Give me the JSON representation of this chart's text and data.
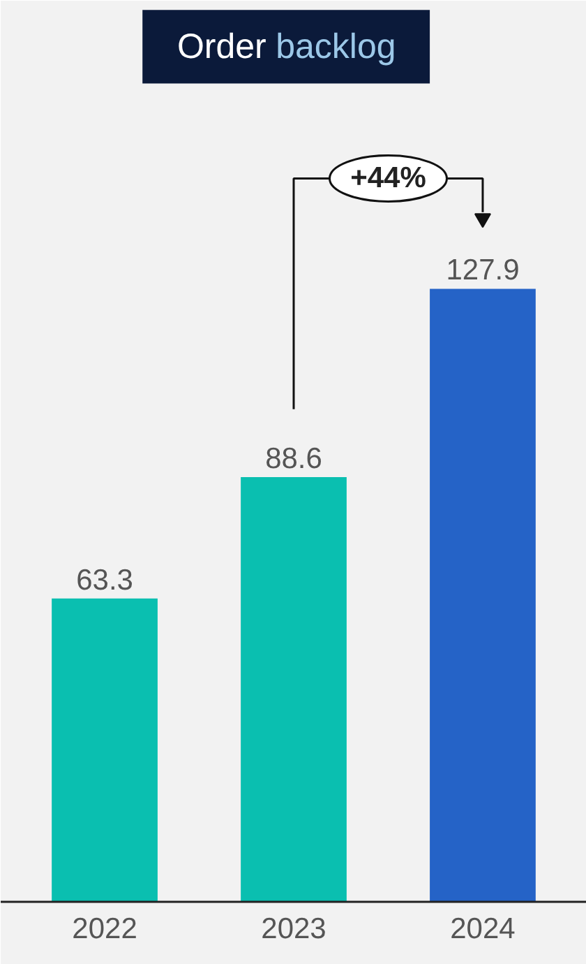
{
  "chart_data": {
    "type": "bar",
    "title": "Order backlog",
    "categories": [
      "2022",
      "2023",
      "2024"
    ],
    "values": [
      63.3,
      88.6,
      127.9
    ],
    "colors": [
      "#0abfb0",
      "#0abfb0",
      "#2563c7"
    ],
    "data_labels": true,
    "annotations": [
      "+44%"
    ],
    "grid": false
  }
}
